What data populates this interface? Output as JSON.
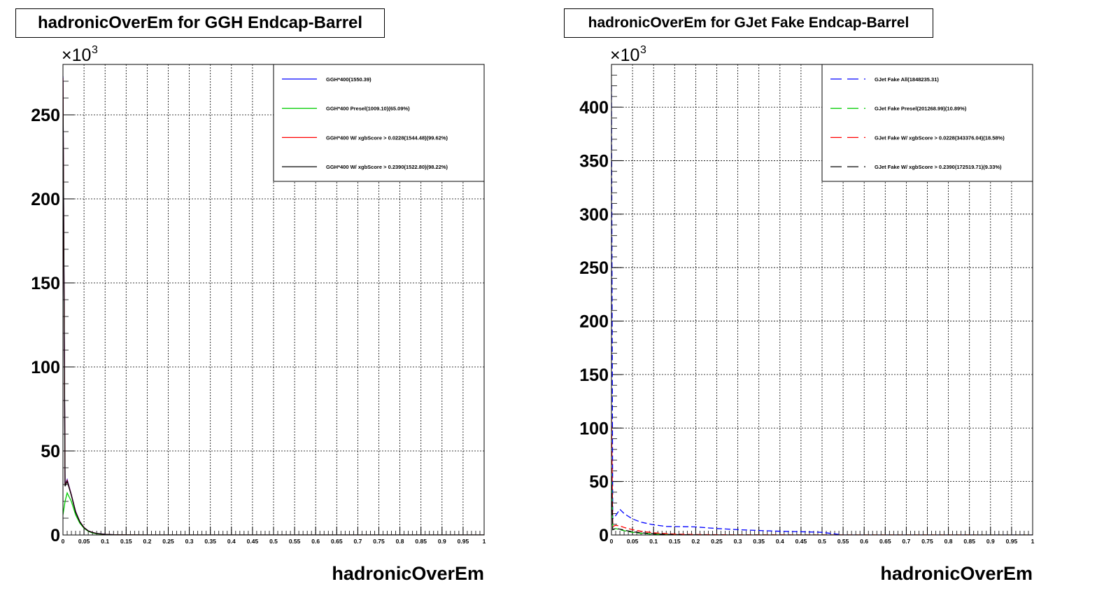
{
  "chart_data": [
    {
      "type": "line",
      "title": "hadronicOverEm for GGH Endcap-Barrel",
      "xlabel": "hadronicOverEm",
      "ylabel": "",
      "yscale_label": "×10",
      "yscale_exp": "3",
      "xlim": [
        0,
        1
      ],
      "ylim": [
        0,
        280000
      ],
      "grid": true,
      "legend_position": "top-right",
      "x_ticks": [
        "0",
        "0.05",
        "0.1",
        "0.15",
        "0.2",
        "0.25",
        "0.3",
        "0.35",
        "0.4",
        "0.45",
        "0.5",
        "0.55",
        "0.6",
        "0.65",
        "0.7",
        "0.75",
        "0.8",
        "0.85",
        "0.9",
        "0.95",
        "1"
      ],
      "y_ticks": [
        0,
        50,
        100,
        150,
        200,
        250
      ],
      "series": [
        {
          "name": "GGH*400(1550.39)",
          "color": "#0000ff",
          "dash": false,
          "x": [
            0,
            0.005,
            0.01,
            0.02,
            0.03,
            0.04,
            0.05,
            0.06,
            0.07,
            0.08,
            0.1,
            0.12,
            0.15,
            0.2,
            1.0
          ],
          "y": [
            273000,
            30000,
            33000,
            24000,
            14000,
            8000,
            4500,
            2500,
            1500,
            900,
            400,
            150,
            50,
            0,
            0
          ]
        },
        {
          "name": "GGH*400 Presel(1009.10)(65.09%)",
          "color": "#00cc00",
          "dash": false,
          "x": [
            0,
            0.005,
            0.01,
            0.02,
            0.03,
            0.04,
            0.05,
            0.06,
            0.07,
            0.08,
            0.1,
            0.12,
            0.15,
            0.2,
            1.0
          ],
          "y": [
            12000,
            20000,
            25000,
            20000,
            12000,
            7000,
            4000,
            2200,
            1200,
            700,
            300,
            100,
            40,
            0,
            0
          ]
        },
        {
          "name": "GGH*400 W/ xgbScore > 0.0228(1544.48)(99.62%)",
          "color": "#ff0000",
          "dash": false,
          "x": [
            0,
            0.005,
            0.01,
            0.02,
            0.03,
            0.04,
            0.05,
            0.06,
            0.07,
            0.08,
            0.1,
            0.12,
            0.15,
            0.2,
            1.0
          ],
          "y": [
            272000,
            29500,
            32500,
            23800,
            13800,
            7900,
            4400,
            2450,
            1480,
            880,
            390,
            140,
            45,
            0,
            0
          ]
        },
        {
          "name": "GGH*400 W/ xgbScore > 0.2390(1522.80)(98.22%)",
          "color": "#000000",
          "dash": false,
          "x": [
            0,
            0.005,
            0.01,
            0.02,
            0.03,
            0.04,
            0.05,
            0.06,
            0.07,
            0.08,
            0.1,
            0.12,
            0.15,
            0.2,
            1.0
          ],
          "y": [
            270000,
            29000,
            32000,
            23500,
            13600,
            7800,
            4300,
            2400,
            1450,
            860,
            380,
            140,
            45,
            0,
            0
          ]
        }
      ]
    },
    {
      "type": "line",
      "title": "hadronicOverEm for GJet Fake Endcap-Barrel",
      "xlabel": "hadronicOverEm",
      "ylabel": "",
      "yscale_label": "×10",
      "yscale_exp": "3",
      "xlim": [
        0,
        1
      ],
      "ylim": [
        0,
        440000
      ],
      "grid": true,
      "legend_position": "top-right",
      "x_ticks": [
        "0",
        "0.05",
        "0.1",
        "0.15",
        "0.2",
        "0.25",
        "0.3",
        "0.35",
        "0.4",
        "0.45",
        "0.5",
        "0.55",
        "0.6",
        "0.65",
        "0.7",
        "0.75",
        "0.8",
        "0.85",
        "0.9",
        "0.95",
        "1"
      ],
      "y_ticks": [
        0,
        50,
        100,
        150,
        200,
        250,
        300,
        350,
        400
      ],
      "series": [
        {
          "name": "GJet Fake All(1848235.31)",
          "color": "#0000ff",
          "dash": true,
          "x": [
            0,
            0.003,
            0.01,
            0.02,
            0.03,
            0.05,
            0.07,
            0.1,
            0.13,
            0.16,
            0.2,
            0.25,
            0.3,
            0.35,
            0.4,
            0.45,
            0.5,
            0.55,
            1.0
          ],
          "y": [
            420000,
            15000,
            18000,
            24000,
            20000,
            15000,
            12000,
            9500,
            8000,
            7800,
            7500,
            6000,
            5000,
            4200,
            3500,
            3000,
            2500,
            0,
            0
          ]
        },
        {
          "name": "GJet Fake Presel(201268.99)(10.89%)",
          "color": "#00cc00",
          "dash": true,
          "x": [
            0,
            0.003,
            0.01,
            0.02,
            0.03,
            0.05,
            0.07,
            0.1,
            0.13,
            0.16,
            0.2,
            0.3,
            1.0
          ],
          "y": [
            60000,
            5000,
            6000,
            5000,
            4000,
            2500,
            1500,
            800,
            400,
            200,
            100,
            0,
            0
          ]
        },
        {
          "name": "GJet Fake W/ xgbScore > 0.0228(343376.04)(18.58%)",
          "color": "#ff0000",
          "dash": true,
          "x": [
            0,
            0.003,
            0.01,
            0.02,
            0.03,
            0.05,
            0.07,
            0.1,
            0.13,
            0.16,
            0.2,
            0.3,
            1.0
          ],
          "y": [
            110000,
            8000,
            9000,
            8500,
            7000,
            5000,
            3500,
            2000,
            1200,
            700,
            400,
            100,
            0
          ]
        },
        {
          "name": "GJet Fake W/ xgbScore > 0.2390(172519.71)(9.33%)",
          "color": "#000000",
          "dash": true,
          "x": [
            0,
            0.003,
            0.01,
            0.02,
            0.03,
            0.05,
            0.07,
            0.1,
            0.13,
            0.16,
            0.2,
            0.3,
            1.0
          ],
          "y": [
            55000,
            5000,
            6000,
            5500,
            4500,
            3000,
            2000,
            1100,
            600,
            300,
            150,
            0,
            0
          ]
        }
      ]
    }
  ]
}
